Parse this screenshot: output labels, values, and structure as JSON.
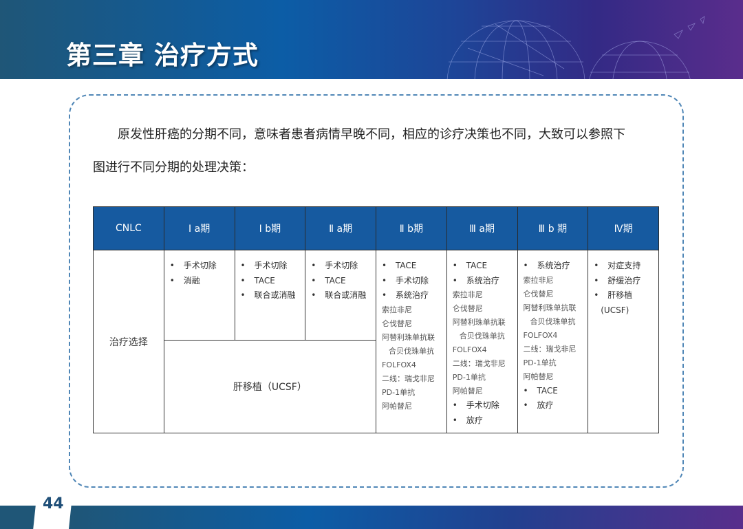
{
  "header": {
    "title": "第三章 治疗方式"
  },
  "intro": {
    "line1": "原发性肝癌的分期不同，意味者患者病情早晚不同，相应的诊疗决策也不同，大致可以参照下",
    "line2": "图进行不同分期的处理决策："
  },
  "table": {
    "headers": [
      "CNLC",
      "Ⅰ a期",
      "Ⅰ b期",
      "Ⅱ a期",
      "Ⅱ b期",
      "Ⅲ a期",
      "Ⅲ b 期",
      "Ⅳ期"
    ],
    "row_label": "治疗选择",
    "merged_cell": "肝移植（UCSF）",
    "cells": [
      [
        {
          "t": "手术切除",
          "k": "b"
        },
        {
          "t": "消融",
          "k": "b"
        }
      ],
      [
        {
          "t": "手术切除",
          "k": "b"
        },
        {
          "t": "TACE",
          "k": "b"
        },
        {
          "t": "联合或消融",
          "k": "b"
        }
      ],
      [
        {
          "t": "手术切除",
          "k": "b"
        },
        {
          "t": "TACE",
          "k": "b"
        },
        {
          "t": "联合或消融",
          "k": "b"
        }
      ],
      [
        {
          "t": "TACE",
          "k": "b"
        },
        {
          "t": "手术切除",
          "k": "b"
        },
        {
          "t": "系统治疗",
          "k": "b"
        },
        {
          "t": "索拉非尼",
          "k": "sub"
        },
        {
          "t": "仑伐替尼",
          "k": "sub"
        },
        {
          "t": "阿替利珠单抗联",
          "k": "sub"
        },
        {
          "t": "合贝伐珠单抗",
          "k": "sub ind"
        },
        {
          "t": "FOLFOX4",
          "k": "sub"
        },
        {
          "t": "二线：瑞戈非尼",
          "k": "sub"
        },
        {
          "t": "PD-1单抗",
          "k": "sub"
        },
        {
          "t": "阿帕替尼",
          "k": "sub"
        }
      ],
      [
        {
          "t": "TACE",
          "k": "b"
        },
        {
          "t": "系统治疗",
          "k": "b"
        },
        {
          "t": "索拉非尼",
          "k": "sub"
        },
        {
          "t": "仑伐替尼",
          "k": "sub"
        },
        {
          "t": "阿替利珠单抗联",
          "k": "sub"
        },
        {
          "t": "合贝伐珠单抗",
          "k": "sub ind"
        },
        {
          "t": "FOLFOX4",
          "k": "sub"
        },
        {
          "t": "二线：瑞戈非尼",
          "k": "sub"
        },
        {
          "t": "PD-1单抗",
          "k": "sub"
        },
        {
          "t": "阿帕替尼",
          "k": "sub"
        },
        {
          "t": "手术切除",
          "k": "b"
        },
        {
          "t": "放疗",
          "k": "b"
        }
      ],
      [
        {
          "t": "系统治疗",
          "k": "b"
        },
        {
          "t": "索拉非尼",
          "k": "sub"
        },
        {
          "t": "仑伐替尼",
          "k": "sub"
        },
        {
          "t": "阿替利珠单抗联",
          "k": "sub"
        },
        {
          "t": "合贝伐珠单抗",
          "k": "sub ind"
        },
        {
          "t": "FOLFOX4",
          "k": "sub"
        },
        {
          "t": "二线：瑞戈非尼",
          "k": "sub"
        },
        {
          "t": "PD-1单抗",
          "k": "sub"
        },
        {
          "t": "阿帕替尼",
          "k": "sub"
        },
        {
          "t": "TACE",
          "k": "b"
        },
        {
          "t": "放疗",
          "k": "b"
        }
      ],
      [
        {
          "t": "对症支持",
          "k": "b"
        },
        {
          "t": "舒缓治疗",
          "k": "b"
        },
        {
          "t": "肝移植",
          "k": "b"
        },
        {
          "t": "(UCSF)",
          "k": "pl"
        }
      ]
    ]
  },
  "footer": {
    "page_number": "44"
  },
  "colors": {
    "header_blue": "#165aa0",
    "frame_dash": "#4f86b6"
  }
}
